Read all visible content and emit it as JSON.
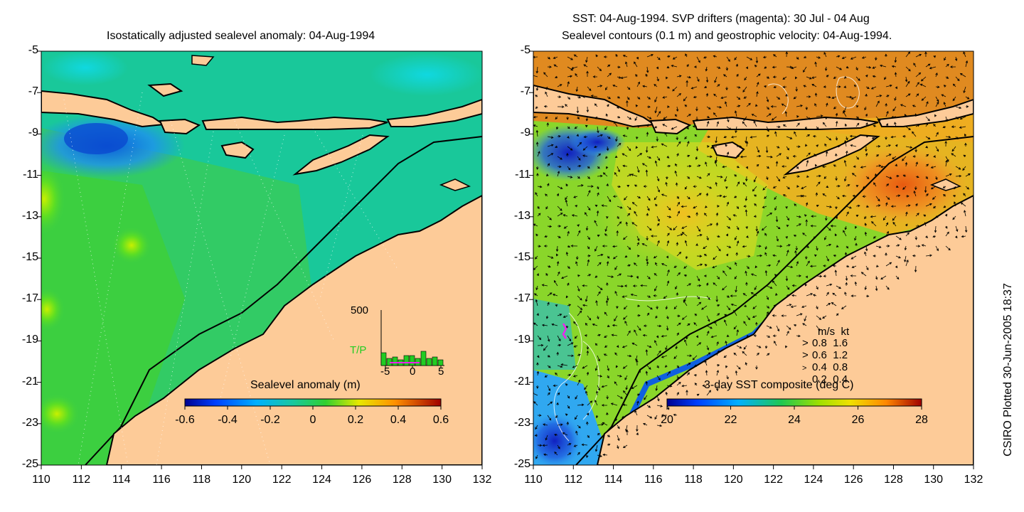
{
  "left_panel": {
    "title": "Isostatically adjusted sealevel anomaly: 04-Aug-1994",
    "colorbar": {
      "title": "Sealevel anomaly (m)",
      "ticks": [
        "-0.6",
        "-0.4",
        "-0.2",
        "0",
        "0.2",
        "0.4",
        "0.6"
      ]
    },
    "inset": {
      "ymax_label": "500",
      "series_label": "T/P",
      "x_ticks": [
        "-5",
        "0",
        "5"
      ],
      "series_color": "#22cc22"
    }
  },
  "right_panel": {
    "title_line1": "SST: 04-Aug-1994. SVP drifters (magenta): 30 Jul - 04 Aug",
    "title_line2": "Sealevel contours (0.1 m) and geostrophic velocity: 04-Aug-1994.",
    "colorbar": {
      "title": "3-day SST composite (deg C)",
      "ticks": [
        "20",
        "22",
        "24",
        "26",
        "28"
      ]
    },
    "velocity_legend": {
      "header": [
        "m/s",
        "kt"
      ],
      "rows": [
        {
          "ms": "0.8",
          "kt": "1.6"
        },
        {
          "ms": "0.6",
          "kt": "1.2"
        },
        {
          "ms": "0.4",
          "kt": "0.8"
        },
        {
          "ms": "0.2",
          "kt": "0.4"
        }
      ]
    }
  },
  "axes": {
    "y_ticks": [
      "-5",
      "-7",
      "-9",
      "-11",
      "-13",
      "-15",
      "-17",
      "-19",
      "-21",
      "-23",
      "-25"
    ],
    "x_ticks": [
      "110",
      "112",
      "114",
      "116",
      "118",
      "120",
      "122",
      "124",
      "126",
      "128",
      "130",
      "132"
    ]
  },
  "footer": {
    "plot_credit": "CSIRO Plotted 30-Jun-2005 18:37"
  },
  "colors": {
    "land": "#fdcb98",
    "sla_ocean": "#19c89a",
    "sst_ocean": "#8ad62a",
    "drifter": "#ee22ee"
  }
}
